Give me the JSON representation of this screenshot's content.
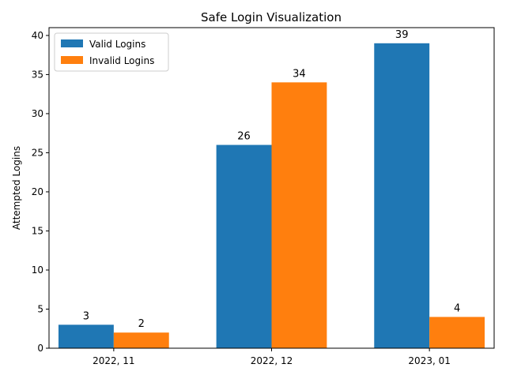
{
  "chart_data": {
    "type": "bar",
    "title": "Safe Login Visualization",
    "xlabel": "",
    "ylabel": "Attempted Logins",
    "categories": [
      "2022, 11",
      "2022, 12",
      "2023, 01"
    ],
    "series": [
      {
        "name": "Valid Logins",
        "values": [
          3,
          26,
          39
        ],
        "color": "#1f77b4"
      },
      {
        "name": "Invalid Logins",
        "values": [
          2,
          34,
          4
        ],
        "color": "#ff7f0e"
      }
    ],
    "ylim": [
      0,
      41
    ],
    "yticks": [
      0,
      5,
      10,
      15,
      20,
      25,
      30,
      35,
      40
    ],
    "grid": false,
    "legend": "top-left"
  }
}
